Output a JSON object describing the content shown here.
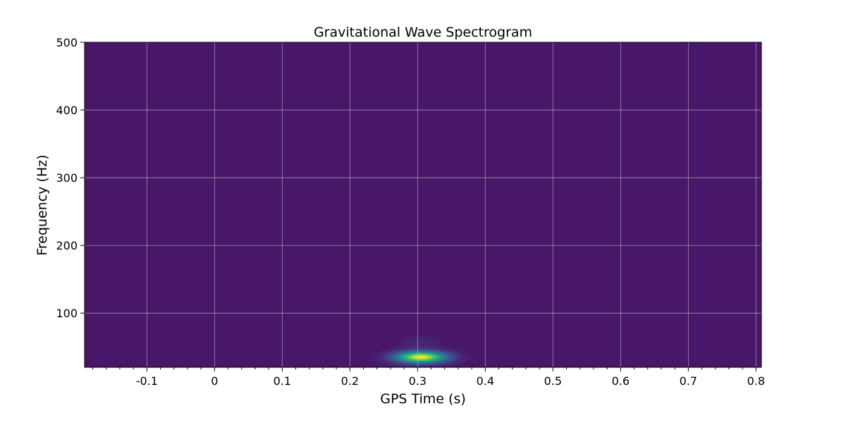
{
  "chart_data": {
    "type": "heatmap",
    "title": "Gravitational Wave Spectrogram",
    "xlabel": "GPS Time (s)",
    "ylabel": "Frequency (Hz)",
    "xlim": [
      -0.192,
      0.808
    ],
    "ylim": [
      20,
      500
    ],
    "xticks": [
      -0.1,
      0,
      0.1,
      0.2,
      0.3,
      0.4,
      0.5,
      0.6,
      0.7,
      0.8
    ],
    "xtick_labels": [
      "-0.1",
      "0",
      "0.1",
      "0.2",
      "0.3",
      "0.4",
      "0.5",
      "0.6",
      "0.7",
      "0.8"
    ],
    "yticks": [
      100,
      200,
      300,
      400,
      500
    ],
    "ytick_labels": [
      "100",
      "200",
      "300",
      "400",
      "500"
    ],
    "x_minor_step": 0.02,
    "grid": true,
    "colormap": "viridis",
    "background_color": "#481769",
    "peak": {
      "time": 0.305,
      "frequency": 35
    },
    "blobs": [
      {
        "time": 0.305,
        "frequency": 35,
        "sigma_time": 0.028,
        "sigma_freq": 6.5,
        "intensity": 1.0
      },
      {
        "time": 0.304,
        "frequency": 58,
        "sigma_time": 0.02,
        "sigma_freq": 6.0,
        "intensity": 0.1
      }
    ]
  }
}
